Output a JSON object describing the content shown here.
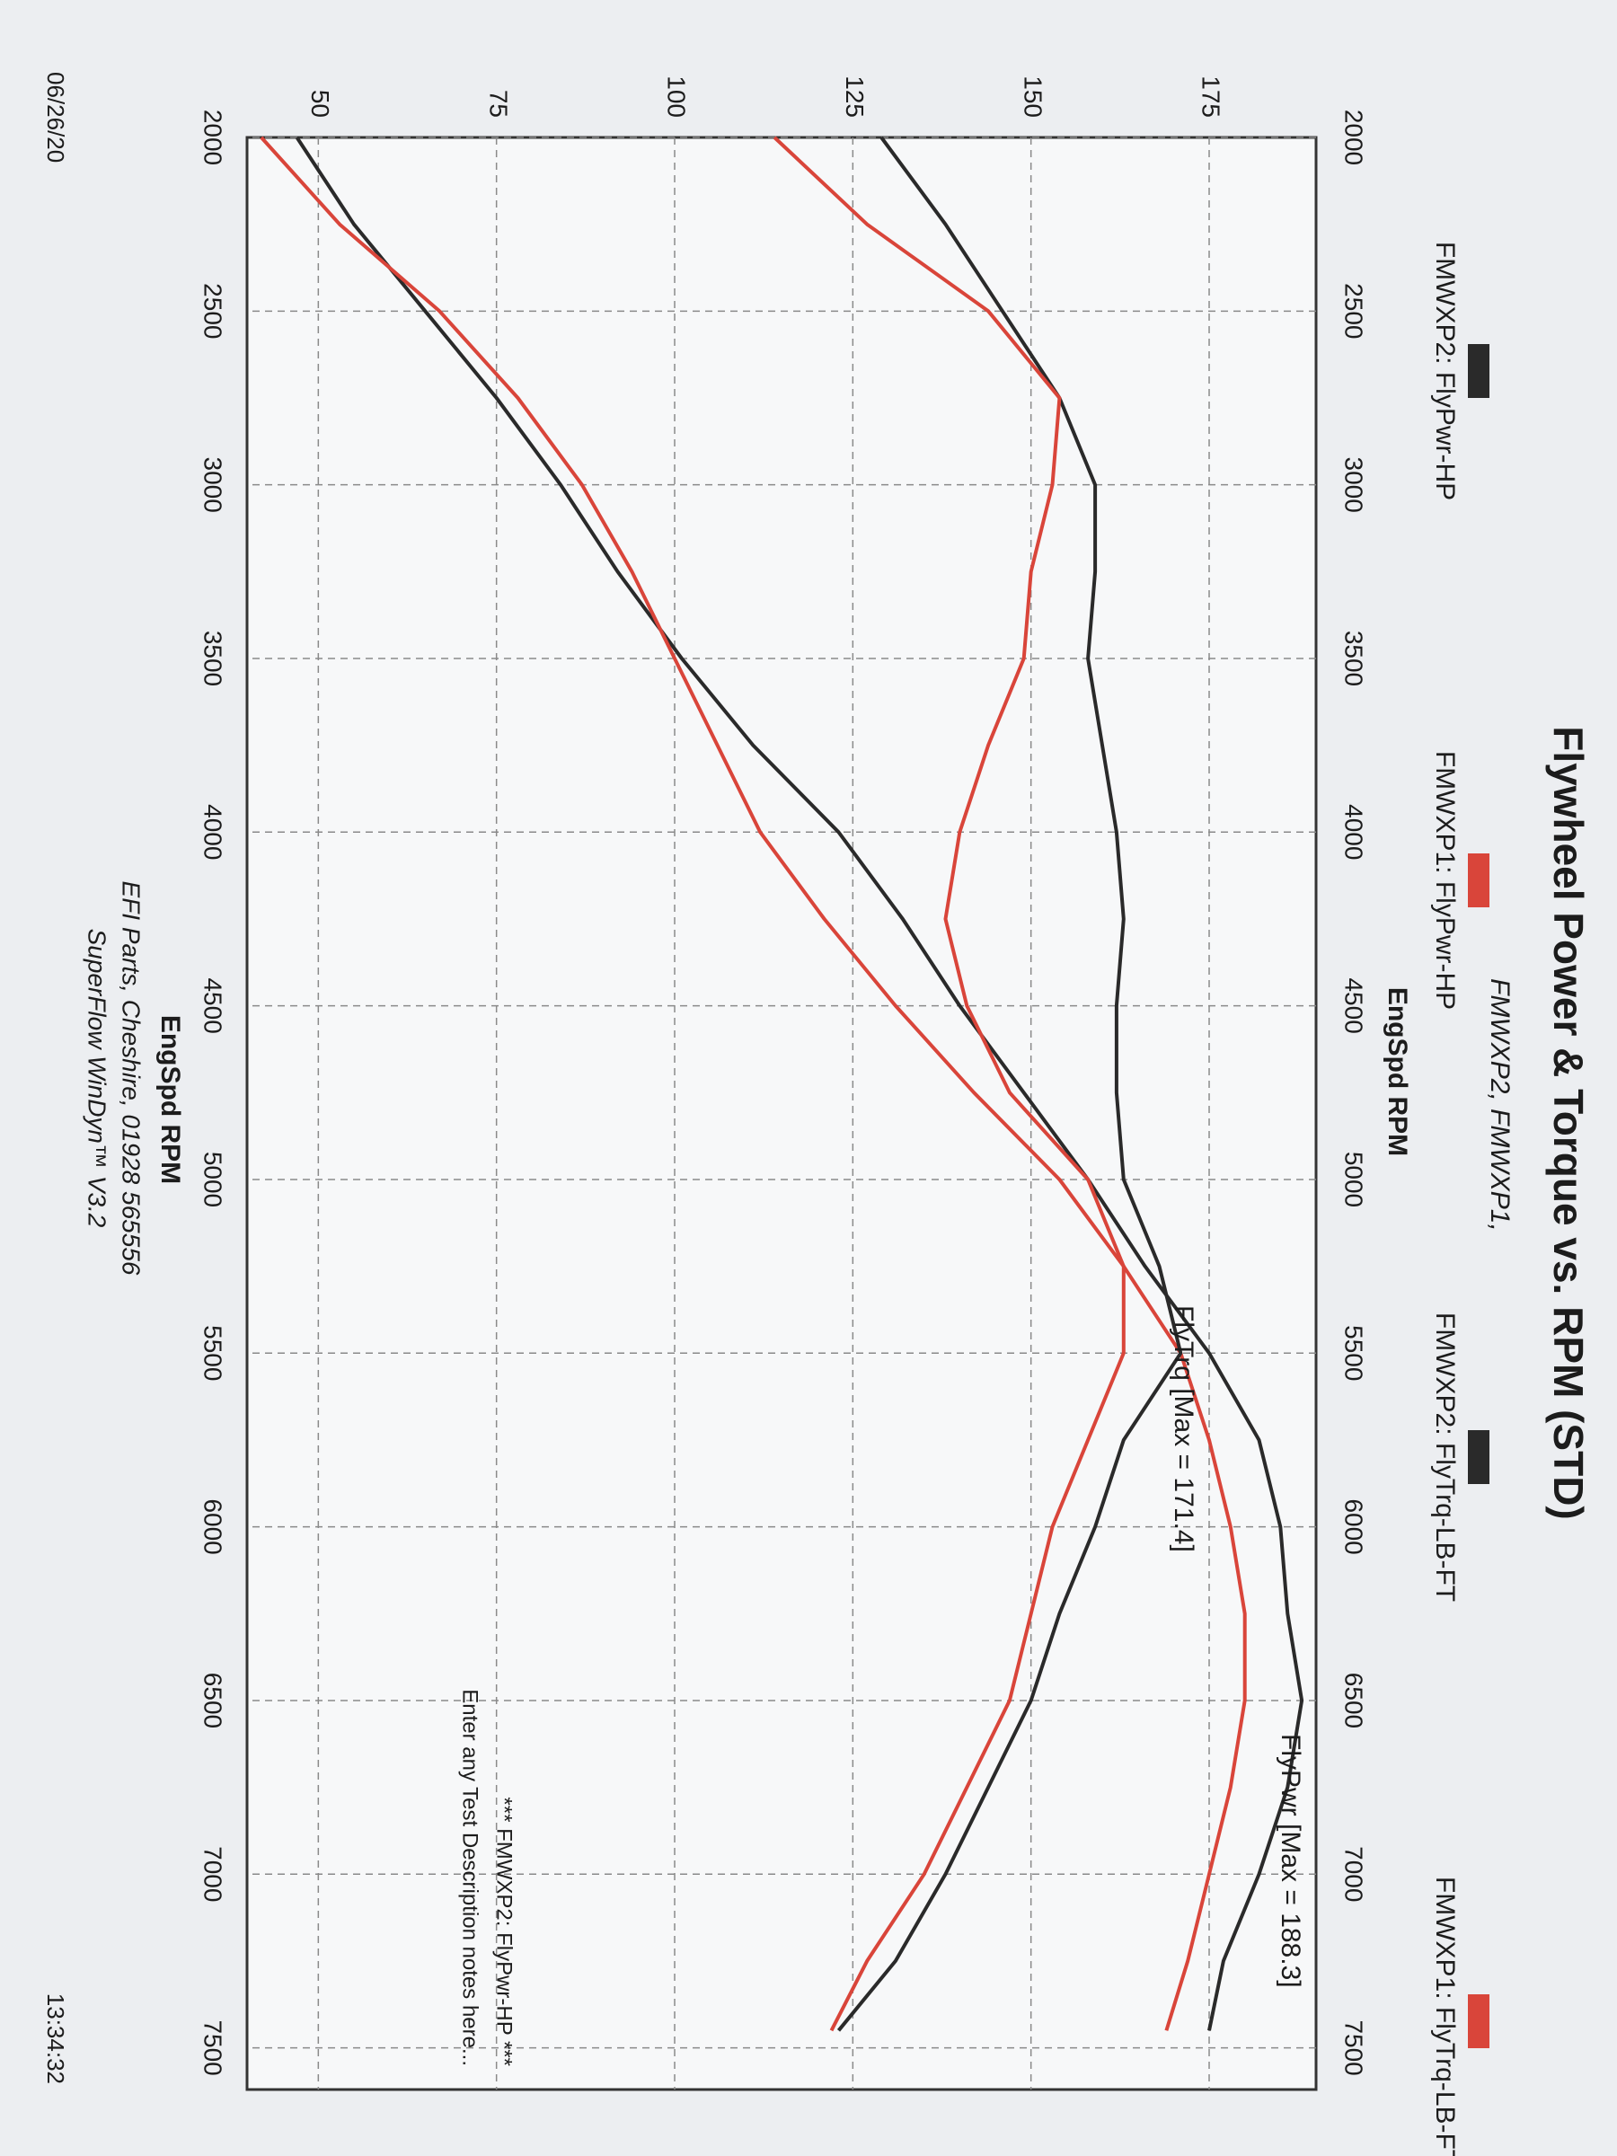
{
  "chart_data": {
    "type": "line",
    "title": "Flywheel Power & Torque vs. RPM (STD)",
    "subtitle": "FMWXP2, FMWXP1,",
    "x_label": "EngSpd RPM",
    "x": [
      2000,
      2250,
      2500,
      2750,
      3000,
      3250,
      3500,
      3750,
      4000,
      4250,
      4500,
      4750,
      5000,
      5250,
      5500,
      5750,
      6000,
      6250,
      6500,
      6750,
      7000,
      7250,
      7450
    ],
    "series": [
      {
        "name": "FMWXP2: FlyPwr-HP",
        "color": "#2a2a2a",
        "values": [
          47,
          55,
          65,
          75,
          84,
          92,
          101,
          111,
          123,
          132,
          140,
          149,
          158,
          166,
          175,
          182,
          185,
          186,
          188,
          186,
          182,
          177,
          175
        ]
      },
      {
        "name": "FMWXP1: FlyPwr-HP",
        "color": "#d9453a",
        "values": [
          42,
          53,
          67,
          78,
          87,
          94,
          100,
          106,
          112,
          121,
          131,
          142,
          154,
          163,
          171,
          175,
          178,
          180,
          180,
          178,
          175,
          172,
          169
        ]
      },
      {
        "name": "FMWXP2: FlyTrq-LB-FT",
        "color": "#2a2a2a",
        "values": [
          129,
          138,
          146,
          154,
          159,
          159,
          158,
          160,
          162,
          163,
          162,
          162,
          163,
          168,
          171,
          163,
          159,
          154,
          150,
          144,
          138,
          131,
          123
        ]
      },
      {
        "name": "FMWXP1: FlyTrq-LB-FT",
        "color": "#d9453a",
        "values": [
          114,
          127,
          144,
          154,
          153,
          150,
          149,
          144,
          140,
          138,
          141,
          147,
          158,
          163,
          163,
          158,
          153,
          150,
          147,
          141,
          135,
          127,
          122
        ]
      }
    ],
    "xlim": [
      2000,
      7620
    ],
    "xticks": [
      2000,
      2500,
      3000,
      3500,
      4000,
      4500,
      5000,
      5500,
      6000,
      6500,
      7000,
      7500
    ],
    "ylim": [
      40,
      190
    ],
    "yticks": [
      50,
      75,
      100,
      125,
      150,
      175
    ],
    "grid": true,
    "annotations": [
      "FlyTrq [Max = 171.4]",
      "FlyPwr [Max = 188.3]",
      "*** FMWXP2: FlyPwr-HP ***",
      "Enter any Test Description notes here..."
    ]
  },
  "footer": {
    "company": "EFI Parts, Cheshire, 01928 565556",
    "software": "SuperFlow WinDyn™ V3.2",
    "date": "06/26/20",
    "time": "13:34:32"
  }
}
